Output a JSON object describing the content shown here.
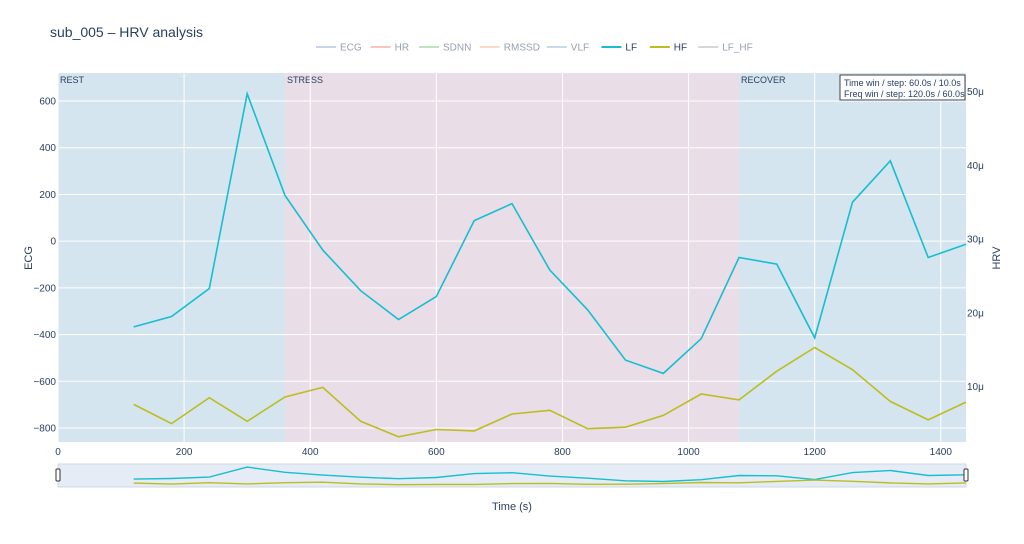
{
  "chart_data": {
    "type": "line",
    "title": "sub_005 – HRV analysis",
    "xlabel": "Time (s)",
    "ylabel_left": "ECG",
    "ylabel_right": "HRV",
    "xlim": [
      0,
      1440
    ],
    "ylim_left": [
      -860,
      720
    ],
    "ylim_right": [
      2.5e-06,
      5.25e-05
    ],
    "x_ticks": [
      0,
      200,
      400,
      600,
      800,
      1000,
      1200,
      1400
    ],
    "x_tick_labels": [
      "0",
      "200",
      "400",
      "600",
      "800",
      "1000",
      "1200",
      "1400"
    ],
    "y_left_ticks": [
      600,
      400,
      200,
      0,
      -200,
      -400,
      -600,
      -800
    ],
    "y_left_tick_labels": [
      "600",
      "400",
      "200",
      "0",
      "−200",
      "−400",
      "−600",
      "−800"
    ],
    "y_right_ticks": [
      5e-05,
      4e-05,
      3e-05,
      2e-05,
      1e-05
    ],
    "y_right_tick_labels": [
      "50μ",
      "40μ",
      "30μ",
      "20μ",
      "10μ"
    ],
    "grid": true,
    "legend_position": "top-center",
    "legend": [
      {
        "name": "ECG",
        "color": "#8fa9d8",
        "active": false
      },
      {
        "name": "HR",
        "color": "#f58a7a",
        "active": false
      },
      {
        "name": "SDNN",
        "color": "#7fc97f",
        "active": false
      },
      {
        "name": "RMSSD",
        "color": "#fcb58a",
        "active": false
      },
      {
        "name": "VLF",
        "color": "#8fb7e0",
        "active": false
      },
      {
        "name": "LF",
        "color": "#17becf",
        "active": true
      },
      {
        "name": "HF",
        "color": "#bcbd22",
        "active": true
      },
      {
        "name": "LF_HF",
        "color": "#b0b0b0",
        "active": false
      }
    ],
    "regions": [
      {
        "label": "REST",
        "x0": 0,
        "x1": 360,
        "color": "#d4e5ef"
      },
      {
        "label": "STRESS",
        "x0": 360,
        "x1": 1080,
        "color": "#e9dde7"
      },
      {
        "label": "RECOVER",
        "x0": 1080,
        "x1": 1440,
        "color": "#d4e5ef"
      }
    ],
    "annotation_lines": [
      "Time win / step: 60.0s / 10.0s",
      "Freq win / step: 120.0s / 60.0s"
    ],
    "x": [
      120,
      180,
      240,
      300,
      360,
      420,
      480,
      540,
      600,
      660,
      720,
      780,
      840,
      900,
      960,
      1020,
      1080,
      1140,
      1200,
      1260,
      1320,
      1380,
      1440
    ],
    "series": [
      {
        "name": "LF",
        "axis": "right",
        "color": "#17becf",
        "values": [
          1.81e-05,
          1.95e-05,
          2.33e-05,
          4.97e-05,
          3.59e-05,
          2.85e-05,
          2.3e-05,
          1.91e-05,
          2.22e-05,
          3.25e-05,
          3.48e-05,
          2.58e-05,
          2.04e-05,
          1.36e-05,
          1.18e-05,
          1.65e-05,
          2.75e-05,
          2.66e-05,
          1.66e-05,
          3.5e-05,
          4.06e-05,
          2.75e-05,
          2.93e-05
        ]
      },
      {
        "name": "HF",
        "axis": "right",
        "color": "#bcbd22",
        "values": [
          7.6e-06,
          5e-06,
          8.5e-06,
          5.3e-06,
          8.6e-06,
          9.9e-06,
          5.3e-06,
          3.2e-06,
          4.2e-06,
          4e-06,
          6.3e-06,
          6.8e-06,
          4.3e-06,
          4.5e-06,
          6.1e-06,
          9e-06,
          8.2e-06,
          1.21e-05,
          1.53e-05,
          1.23e-05,
          8e-06,
          5.5e-06,
          7.9e-06
        ]
      }
    ]
  }
}
